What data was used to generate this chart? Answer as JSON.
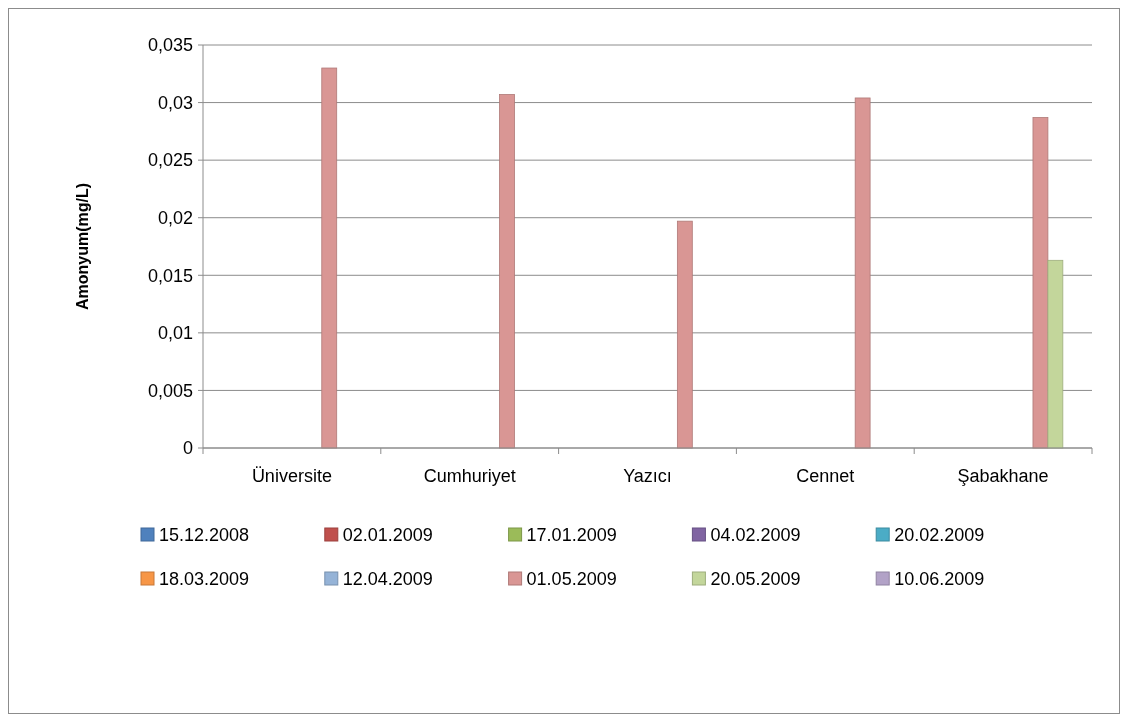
{
  "chart_data": {
    "type": "bar",
    "ylabel": "Amonyum(mg/L)",
    "categories": [
      "Üniversite",
      "Cumhuriyet",
      "Yazıcı",
      "Cennet",
      "Şabakhane"
    ],
    "ylim": [
      0,
      0.035
    ],
    "yticks": [
      {
        "value": 0,
        "label": "0"
      },
      {
        "value": 0.005,
        "label": "0,005"
      },
      {
        "value": 0.01,
        "label": "0,01"
      },
      {
        "value": 0.015,
        "label": "0,015"
      },
      {
        "value": 0.02,
        "label": "0,02"
      },
      {
        "value": 0.025,
        "label": "0,025"
      },
      {
        "value": 0.03,
        "label": "0,03"
      },
      {
        "value": 0.035,
        "label": "0,035"
      }
    ],
    "grid": "y",
    "legend": "bottom",
    "series": [
      {
        "name": "15.12.2008",
        "color": "#4f81bd",
        "values": [
          null,
          null,
          null,
          null,
          null
        ]
      },
      {
        "name": "02.01.2009",
        "color": "#c0504d",
        "values": [
          null,
          null,
          null,
          null,
          null
        ]
      },
      {
        "name": "17.01.2009",
        "color": "#9bbb59",
        "values": [
          null,
          null,
          null,
          null,
          null
        ]
      },
      {
        "name": "04.02.2009",
        "color": "#8064a2",
        "values": [
          null,
          null,
          null,
          null,
          null
        ]
      },
      {
        "name": "20.02.2009",
        "color": "#4bacc6",
        "values": [
          null,
          null,
          null,
          null,
          null
        ]
      },
      {
        "name": "18.03.2009",
        "color": "#f79646",
        "values": [
          null,
          null,
          null,
          null,
          null
        ]
      },
      {
        "name": "12.04.2009",
        "color": "#95b3d7",
        "values": [
          null,
          null,
          null,
          null,
          null
        ]
      },
      {
        "name": "01.05.2009",
        "color": "#d99694",
        "values": [
          0.033,
          0.0307,
          0.0197,
          0.0304,
          0.0287
        ]
      },
      {
        "name": "20.05.2009",
        "color": "#c3d69b",
        "values": [
          null,
          null,
          null,
          null,
          0.0163
        ]
      },
      {
        "name": "10.06.2009",
        "color": "#b2a2c7",
        "values": [
          null,
          null,
          null,
          null,
          null
        ]
      }
    ]
  }
}
